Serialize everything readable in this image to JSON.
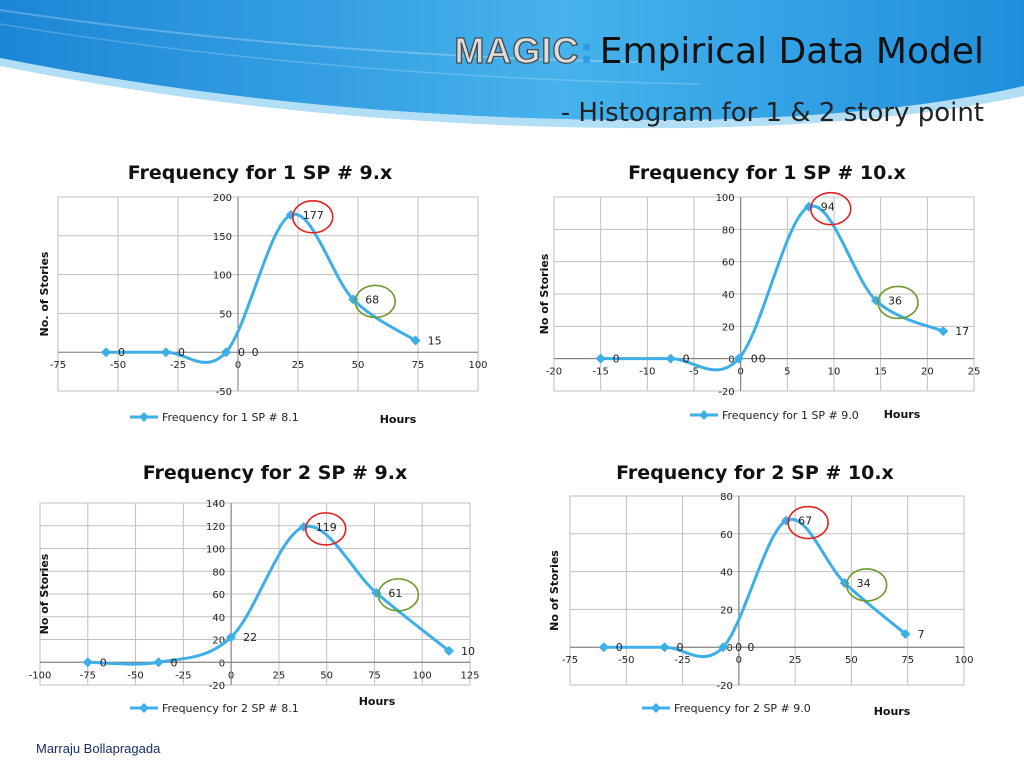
{
  "header": {
    "brand": "MAGIC",
    "colon": ":",
    "title": "Empirical Data Model",
    "subtitle": "- Histogram for 1 & 2 story point"
  },
  "footer": {
    "author": "Marraju Bollapragada"
  },
  "colors": {
    "line": "#3eaee8",
    "grid": "#bfbfbf",
    "highlight_peak": "#e02020",
    "highlight_secondary": "#6a9a2a"
  },
  "chart_data": [
    {
      "type": "line",
      "title": "Frequency for 1 SP # 9.x",
      "xlabel": "Hours",
      "ylabel": "No. of Stories",
      "legend": "Frequency for 1 SP # 8.1",
      "legend_position": "bottom",
      "grid": true,
      "xlim": [
        -75,
        100
      ],
      "xticks": [
        -75,
        -50,
        -25,
        0,
        25,
        50,
        75,
        100
      ],
      "ylim": [
        -50,
        200
      ],
      "yticks": [
        -50,
        50,
        100,
        150,
        200
      ],
      "x": [
        -55,
        -30,
        -5,
        22,
        48,
        74
      ],
      "y": [
        0,
        0,
        0,
        177,
        68,
        15
      ],
      "data_labels": [
        "0",
        "0",
        "0",
        "177",
        "68",
        "15"
      ],
      "extra_labels": [
        {
          "text": "0",
          "x": 4,
          "y": 0
        }
      ],
      "circled": [
        {
          "index": 3,
          "color": "highlight_peak"
        },
        {
          "index": 4,
          "color": "highlight_secondary"
        }
      ]
    },
    {
      "type": "line",
      "title": "Frequency for 1 SP # 10.x",
      "xlabel": "Hours",
      "ylabel": "No of Stories",
      "legend": "Frequency for 1 SP # 9.0",
      "legend_position": "bottom",
      "grid": true,
      "xlim": [
        -20,
        25
      ],
      "xticks": [
        -20,
        -15,
        -10,
        -5,
        0,
        5,
        10,
        15,
        20,
        25
      ],
      "ylim": [
        -20,
        100
      ],
      "yticks": [
        -20,
        0,
        20,
        40,
        60,
        80,
        100
      ],
      "x": [
        -15,
        -7.5,
        -0.2,
        7.3,
        14.5,
        21.7
      ],
      "y": [
        0,
        0,
        0,
        94,
        36,
        17
      ],
      "data_labels": [
        "0",
        "0",
        "0",
        "94",
        "36",
        "17"
      ],
      "extra_labels": [
        {
          "text": "0",
          "x": 1.5,
          "y": 0
        }
      ],
      "circled": [
        {
          "index": 3,
          "color": "highlight_peak"
        },
        {
          "index": 4,
          "color": "highlight_secondary"
        }
      ]
    },
    {
      "type": "line",
      "title": "Frequency for 2 SP # 9.x",
      "xlabel": "Hours",
      "ylabel": "No of Stories",
      "legend": "Frequency for 2 SP # 8.1",
      "legend_position": "bottom",
      "grid": true,
      "xlim": [
        -100,
        125
      ],
      "xticks": [
        -100,
        -75,
        -50,
        -25,
        0,
        25,
        50,
        75,
        100,
        125
      ],
      "ylim": [
        -20,
        140
      ],
      "yticks": [
        -20,
        0,
        20,
        40,
        60,
        80,
        100,
        120,
        140
      ],
      "x": [
        -75,
        -38,
        0,
        38,
        76,
        114
      ],
      "y": [
        0,
        0,
        22,
        119,
        61,
        10
      ],
      "data_labels": [
        "0",
        "0",
        "22",
        "119",
        "61",
        "10"
      ],
      "circled": [
        {
          "index": 3,
          "color": "highlight_peak"
        },
        {
          "index": 4,
          "color": "highlight_secondary"
        }
      ]
    },
    {
      "type": "line",
      "title": "Frequency for 2 SP # 10.x",
      "xlabel": "Hours",
      "ylabel": "No of Stories",
      "legend": "Frequency for 2 SP # 9.0",
      "legend_position": "bottom",
      "grid": true,
      "xlim": [
        -75,
        100
      ],
      "xticks": [
        -75,
        -50,
        -25,
        0,
        25,
        50,
        75,
        100
      ],
      "ylim": [
        -20,
        80
      ],
      "yticks": [
        -20,
        0,
        20,
        40,
        60,
        80
      ],
      "x": [
        -60,
        -33,
        -7,
        21,
        47,
        74
      ],
      "y": [
        0,
        0,
        0,
        67,
        34,
        7
      ],
      "data_labels": [
        "0",
        "0",
        "0",
        "67",
        "34",
        "7"
      ],
      "extra_labels": [
        {
          "text": "0",
          "x": 2,
          "y": 0
        }
      ],
      "circled": [
        {
          "index": 3,
          "color": "highlight_peak"
        },
        {
          "index": 4,
          "color": "highlight_secondary"
        }
      ]
    }
  ]
}
